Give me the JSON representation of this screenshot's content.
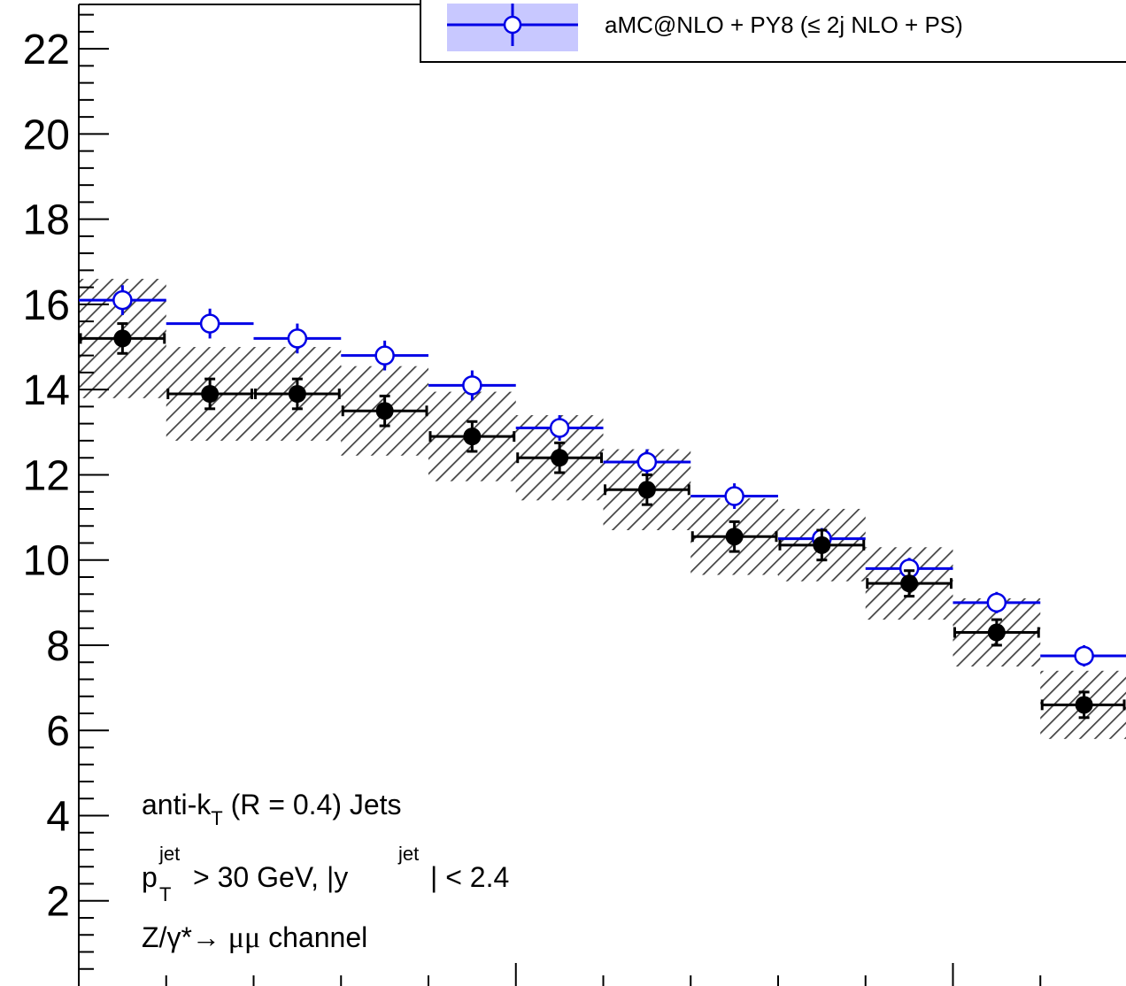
{
  "chart_data": {
    "type": "scatter",
    "ylim": [
      0,
      23
    ],
    "y_ticks": [
      "2",
      "4",
      "6",
      "8",
      "10",
      "12",
      "14",
      "16",
      "18",
      "20",
      "22"
    ],
    "legend": {
      "entries": [
        {
          "label": "aMC@NLO + PY8 (≤ 2j NLO + PS)",
          "color": "#0000e6"
        }
      ]
    },
    "series": [
      {
        "name": "aMC@NLO + PY8 (≤ 2j NLO + PS)",
        "color": "#0000e6",
        "marker": "open-circle",
        "values": [
          16.1,
          15.55,
          15.2,
          14.8,
          14.1,
          13.1,
          12.3,
          11.5,
          10.5,
          9.8,
          9.0,
          7.75
        ],
        "errors": [
          0.35,
          0.35,
          0.35,
          0.35,
          0.35,
          0.3,
          0.3,
          0.3,
          0.25,
          0.25,
          0.25,
          0.25
        ]
      },
      {
        "name": "",
        "color": "#000000",
        "marker": "filled-circle",
        "values": [
          15.2,
          13.9,
          13.9,
          13.5,
          12.9,
          12.4,
          11.65,
          10.55,
          10.35,
          9.45,
          8.3,
          6.6
        ],
        "errors": [
          0.35,
          0.35,
          0.35,
          0.35,
          0.35,
          0.35,
          0.35,
          0.35,
          0.35,
          0.3,
          0.3,
          0.3
        ],
        "band_halfwidth": [
          1.4,
          1.1,
          1.1,
          1.05,
          1.05,
          1.0,
          0.95,
          0.9,
          0.85,
          0.85,
          0.8,
          0.8
        ]
      }
    ],
    "bins": 12,
    "annotations": [
      {
        "text": "anti-k",
        "sub": "T",
        "rest": " (R = 0.4) Jets"
      },
      {
        "p": "p",
        "p_sup": "jet",
        "p_sub": "T",
        "mid": " > 30 GeV, |y",
        "y_sup": "jet",
        "end": "| < 2.4"
      },
      {
        "pre": "Z/γ*→ ",
        "mu": "μμ",
        "post": " channel"
      }
    ]
  }
}
